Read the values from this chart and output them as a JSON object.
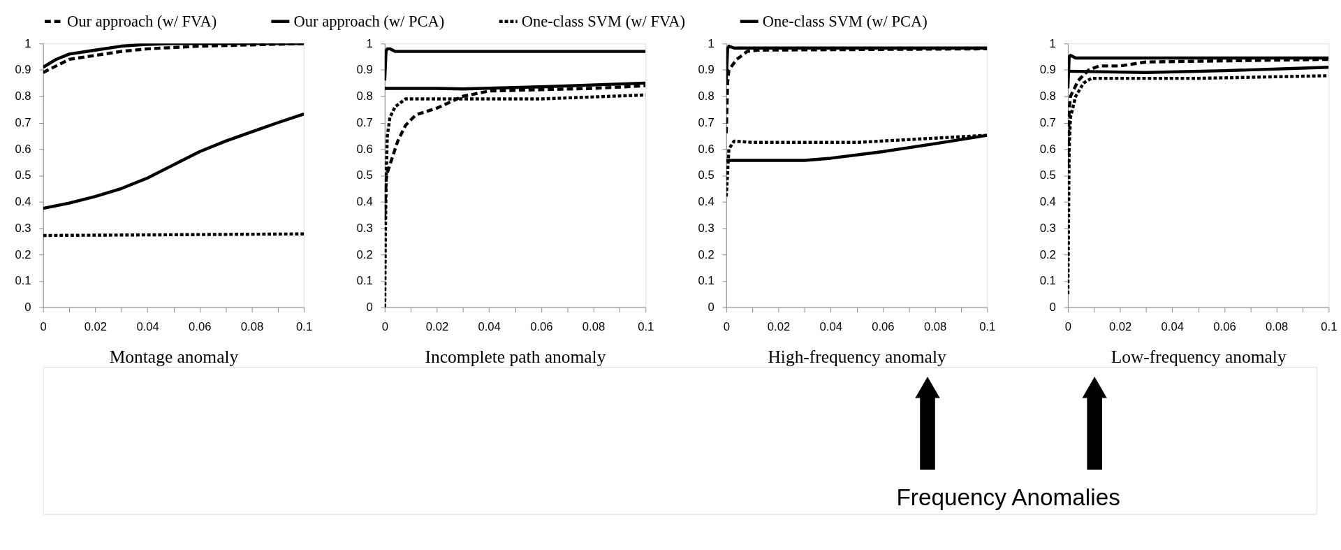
{
  "chart_data": [
    {
      "type": "line",
      "xlabel": "Montage anomaly",
      "legend": "top",
      "marker": "none",
      "xlim": [
        0,
        0.1
      ],
      "ylim": [
        0,
        1
      ],
      "xticks": [
        0,
        {
          "value": 0.01,
          "label": null
        },
        0.02,
        {
          "value": 0.03,
          "label": null
        },
        0.04,
        {
          "value": 0.05,
          "label": null
        },
        0.06,
        {
          "value": 0.07,
          "label": null
        },
        0.08,
        {
          "value": 0.09,
          "label": null
        },
        0.1
      ],
      "yticks": [
        0,
        0.1,
        0.2,
        0.3,
        0.4,
        0.5,
        0.6,
        0.7,
        0.8,
        0.9,
        1
      ],
      "series": [
        {
          "name": "Our approach (w/ FVA)",
          "color": "#000000",
          "line_style": "dashed",
          "x": [
            0,
            0.01,
            0.02,
            0.03,
            0.04,
            0.05,
            0.06,
            0.08,
            0.1
          ],
          "values": [
            0.89,
            0.94,
            0.955,
            0.97,
            0.98,
            0.985,
            0.99,
            0.995,
            1.0
          ]
        },
        {
          "name": "Our approach (w/ PCA)",
          "color": "#000000",
          "line_style": "solid",
          "x": [
            0,
            0.005,
            0.01,
            0.02,
            0.03,
            0.04,
            0.05,
            0.1
          ],
          "values": [
            0.91,
            0.94,
            0.96,
            0.975,
            0.99,
            0.997,
            1.0,
            1.0
          ]
        },
        {
          "name": "One-class SVM (w/ FVA)",
          "color": "#000000",
          "line_style": "dashed",
          "x": [
            0,
            0.1
          ],
          "values": [
            0.272,
            0.278
          ]
        },
        {
          "name": "One-class SVM (w/ PCA)",
          "color": "#000000",
          "line_style": "solid",
          "x": [
            0,
            0.01,
            0.02,
            0.03,
            0.04,
            0.05,
            0.06,
            0.07,
            0.08,
            0.09,
            0.1
          ],
          "values": [
            0.375,
            0.395,
            0.42,
            0.45,
            0.49,
            0.54,
            0.59,
            0.63,
            0.665,
            0.7,
            0.733
          ]
        }
      ]
    },
    {
      "type": "line",
      "xlabel": "Incomplete path anomaly",
      "legend": "top",
      "marker": "none",
      "xlim": [
        0,
        0.1
      ],
      "ylim": [
        0,
        1
      ],
      "xticks": [
        0,
        {
          "value": 0.01,
          "label": null
        },
        0.02,
        {
          "value": 0.03,
          "label": null
        },
        0.04,
        {
          "value": 0.05,
          "label": null
        },
        0.06,
        {
          "value": 0.07,
          "label": null
        },
        0.08,
        {
          "value": 0.09,
          "label": null
        },
        0.1
      ],
      "yticks": [
        0,
        0.1,
        0.2,
        0.3,
        0.4,
        0.5,
        0.6,
        0.7,
        0.8,
        0.9,
        1
      ],
      "series": [
        {
          "name": "Our approach (w/ FVA)",
          "color": "#000000",
          "line_style": "dashed",
          "x": [
            0,
            0.0005,
            0.001,
            0.003,
            0.005,
            0.008,
            0.012,
            0.02,
            0.03,
            0.04,
            0.06,
            0.08,
            0.1
          ],
          "values": [
            0.33,
            0.48,
            0.51,
            0.57,
            0.63,
            0.69,
            0.73,
            0.755,
            0.8,
            0.82,
            0.825,
            0.83,
            0.84
          ]
        },
        {
          "name": "Our approach (w/ PCA)",
          "color": "#000000",
          "line_style": "solid",
          "x": [
            0,
            0.0005,
            0.001,
            0.002,
            0.004,
            0.1
          ],
          "values": [
            0.86,
            0.97,
            0.98,
            0.98,
            0.97,
            0.97
          ]
        },
        {
          "name": "One-class SVM (w/ FVA)",
          "color": "#000000",
          "line_style": "dashed",
          "x": [
            0,
            0.0003,
            0.0006,
            0.001,
            0.002,
            0.004,
            0.008,
            0.03,
            0.06,
            0.1
          ],
          "values": [
            0.0,
            0.3,
            0.5,
            0.65,
            0.72,
            0.76,
            0.79,
            0.79,
            0.79,
            0.805
          ]
        },
        {
          "name": "One-class SVM (w/ PCA)",
          "color": "#000000",
          "line_style": "solid",
          "x": [
            0,
            0.02,
            0.03,
            0.06,
            0.1
          ],
          "values": [
            0.83,
            0.83,
            0.828,
            0.836,
            0.85
          ]
        }
      ]
    },
    {
      "type": "line",
      "xlabel": "High-frequency anomaly",
      "legend": "top",
      "marker": "none",
      "xlim": [
        0,
        0.1
      ],
      "ylim": [
        0,
        1
      ],
      "xticks": [
        0,
        {
          "value": 0.01,
          "label": null
        },
        0.02,
        {
          "value": 0.03,
          "label": null
        },
        0.04,
        {
          "value": 0.05,
          "label": null
        },
        0.06,
        {
          "value": 0.07,
          "label": null
        },
        0.08,
        {
          "value": 0.09,
          "label": null
        },
        0.1
      ],
      "yticks": [
        0,
        0.1,
        0.2,
        0.3,
        0.4,
        0.5,
        0.6,
        0.7,
        0.8,
        0.9,
        1
      ],
      "annotations": [
        "Frequency Anomalies"
      ],
      "series": [
        {
          "name": "Our approach (w/ FVA)",
          "color": "#000000",
          "line_style": "dashed",
          "x": [
            0,
            0.0005,
            0.001,
            0.004,
            0.008,
            0.012,
            0.1
          ],
          "values": [
            0.66,
            0.85,
            0.9,
            0.94,
            0.97,
            0.975,
            0.98
          ]
        },
        {
          "name": "Our approach (w/ PCA)",
          "color": "#000000",
          "line_style": "solid",
          "x": [
            0,
            0.0005,
            0.001,
            0.003,
            0.1
          ],
          "values": [
            0.86,
            0.98,
            0.99,
            0.983,
            0.983
          ]
        },
        {
          "name": "One-class SVM (w/ FVA)",
          "color": "#000000",
          "line_style": "dashed",
          "x": [
            0,
            0.001,
            0.003,
            0.01,
            0.05,
            0.1
          ],
          "values": [
            0.42,
            0.6,
            0.63,
            0.625,
            0.625,
            0.652
          ]
        },
        {
          "name": "One-class SVM (w/ PCA)",
          "color": "#000000",
          "line_style": "solid",
          "x": [
            0,
            0.03,
            0.04,
            0.06,
            0.08,
            0.1
          ],
          "values": [
            0.557,
            0.557,
            0.565,
            0.59,
            0.62,
            0.652
          ]
        }
      ]
    },
    {
      "type": "line",
      "xlabel": "Low-frequency anomaly",
      "legend": "top",
      "marker": "none",
      "xlim": [
        0,
        0.1
      ],
      "ylim": [
        0,
        1
      ],
      "xticks": [
        0,
        {
          "value": 0.01,
          "label": null
        },
        0.02,
        {
          "value": 0.03,
          "label": null
        },
        0.04,
        {
          "value": 0.05,
          "label": null
        },
        0.06,
        {
          "value": 0.07,
          "label": null
        },
        0.08,
        {
          "value": 0.09,
          "label": null
        },
        0.1
      ],
      "yticks": [
        0,
        0.1,
        0.2,
        0.3,
        0.4,
        0.5,
        0.6,
        0.7,
        0.8,
        0.9,
        1
      ],
      "series": [
        {
          "name": "Our approach (w/ FVA)",
          "color": "#000000",
          "line_style": "dashed",
          "x": [
            0,
            0.0005,
            0.001,
            0.004,
            0.008,
            0.012,
            0.02,
            0.03,
            0.1
          ],
          "values": [
            0.54,
            0.75,
            0.8,
            0.86,
            0.9,
            0.915,
            0.915,
            0.93,
            0.94
          ]
        },
        {
          "name": "Our approach (w/ PCA)",
          "color": "#000000",
          "line_style": "solid",
          "x": [
            0,
            0.0005,
            0.001,
            0.003,
            0.1
          ],
          "values": [
            0.83,
            0.95,
            0.955,
            0.945,
            0.945
          ]
        },
        {
          "name": "One-class SVM (w/ FVA)",
          "color": "#000000",
          "line_style": "dashed",
          "x": [
            0,
            0.0005,
            0.001,
            0.003,
            0.006,
            0.009,
            0.05,
            0.1
          ],
          "values": [
            0.05,
            0.6,
            0.72,
            0.8,
            0.85,
            0.868,
            0.868,
            0.878
          ]
        },
        {
          "name": "One-class SVM (w/ PCA)",
          "color": "#000000",
          "line_style": "solid",
          "x": [
            0,
            0.03,
            0.06,
            0.1
          ],
          "values": [
            0.895,
            0.89,
            0.897,
            0.91
          ]
        }
      ]
    }
  ]
}
